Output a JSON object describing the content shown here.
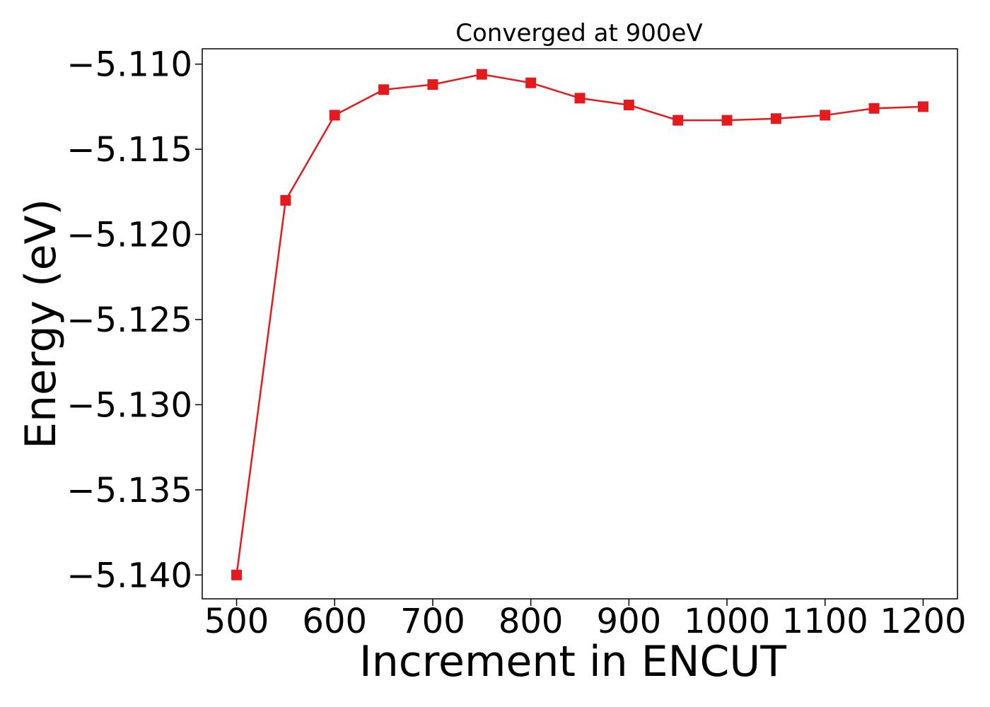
{
  "chart_data": {
    "type": "line",
    "title": "Converged at 900eV",
    "xlabel": "Increment in ENCUT",
    "ylabel": "Energy (eV)",
    "x": [
      500,
      550,
      600,
      650,
      700,
      750,
      800,
      850,
      900,
      950,
      1000,
      1050,
      1100,
      1150,
      1200
    ],
    "series": [
      {
        "values": [
          -5.14,
          -5.118,
          -5.113,
          -5.1115,
          -5.1112,
          -5.1106,
          -5.1111,
          -5.112,
          -5.1124,
          -5.1133,
          -5.1133,
          -5.1132,
          -5.113,
          -5.1126,
          -5.1125
        ],
        "color": "#e41a1c",
        "marker": "square"
      }
    ],
    "xticks": [
      500,
      600,
      700,
      800,
      900,
      1000,
      1100,
      1200
    ],
    "xtick_labels": [
      "500",
      "600",
      "700",
      "800",
      "900",
      "1000",
      "1100",
      "1200"
    ],
    "yticks": [
      -5.11,
      -5.115,
      -5.12,
      -5.125,
      -5.13,
      -5.135,
      -5.14
    ],
    "ytick_labels": [
      "−5.110",
      "−5.115",
      "−5.120",
      "−5.125",
      "−5.130",
      "−5.135",
      "−5.140"
    ],
    "xlim": [
      465,
      1235
    ],
    "ylim": [
      -5.1414,
      -5.1091
    ],
    "grid": false,
    "legend": false
  }
}
